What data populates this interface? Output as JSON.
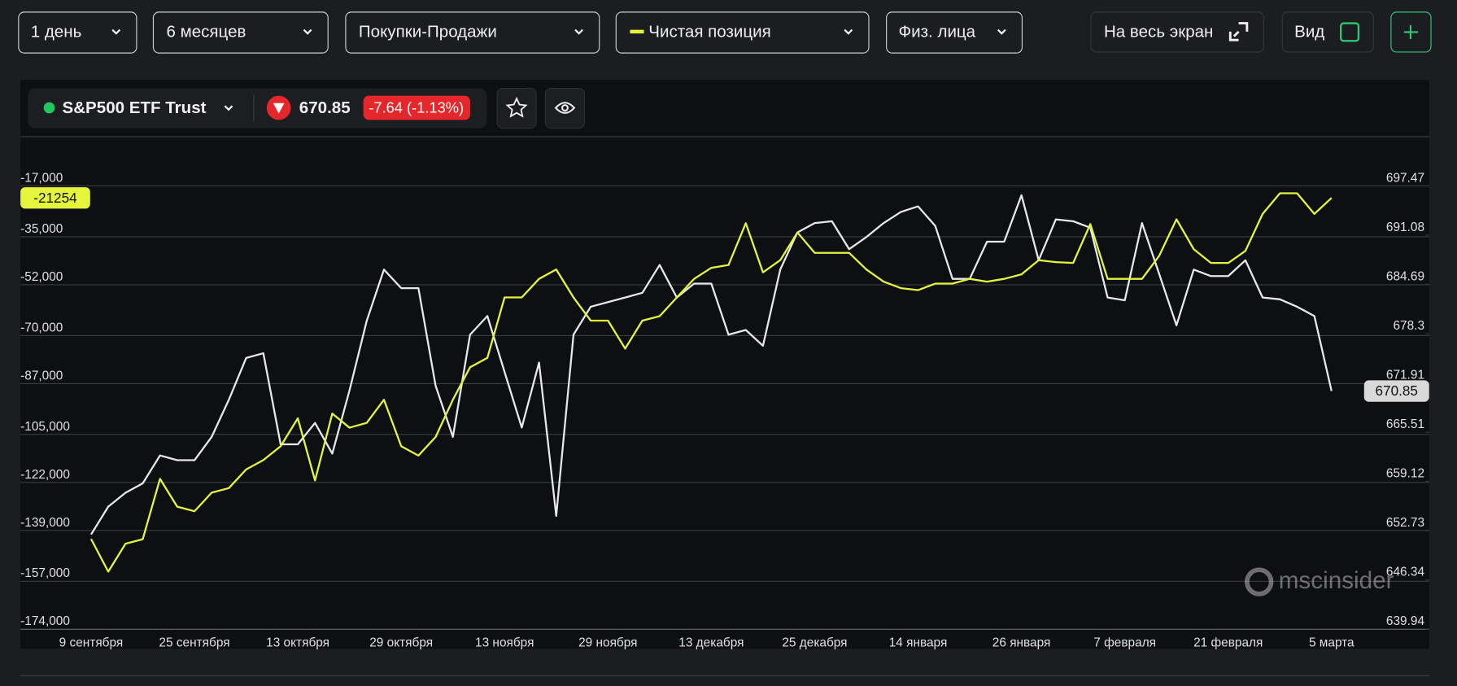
{
  "toolbar": {
    "dropdowns": [
      "1 день",
      "6 месяцев",
      "Покупки-Продажи",
      "Чистая позиция",
      "Физ. лица"
    ],
    "fullscreen": "На весь экран",
    "view": "Вид"
  },
  "instrument": {
    "name": "S&P500 ETF Trust",
    "price": 670.85,
    "change": "-7.64 (-1.13%)"
  },
  "watermark": "mscinsider",
  "chart_data": {
    "type": "line",
    "grid": true,
    "categories": [
      "9 сентября",
      null,
      null,
      null,
      null,
      null,
      "25 сентября",
      null,
      null,
      null,
      null,
      null,
      "13 октября",
      null,
      null,
      null,
      null,
      null,
      "29 октября",
      null,
      null,
      null,
      null,
      null,
      "13 ноября",
      null,
      null,
      null,
      null,
      null,
      "29 ноября",
      null,
      null,
      null,
      null,
      null,
      "13 декабря",
      null,
      null,
      null,
      null,
      null,
      "25 декабря",
      null,
      null,
      null,
      null,
      null,
      "14 января",
      null,
      null,
      null,
      null,
      null,
      "26 января",
      null,
      null,
      null,
      null,
      null,
      "7 февраля",
      null,
      null,
      null,
      null,
      null,
      "21 февраля",
      null,
      null,
      null,
      null,
      null,
      "5 марта"
    ],
    "ylim": [
      -174000,
      -17000
    ],
    "yticks": [
      {
        "value": -17000,
        "label": "-17,000"
      },
      {
        "value": -35000,
        "label": "-35,000"
      },
      {
        "value": -52000,
        "label": "-52,000"
      },
      {
        "value": -70000,
        "label": "-70,000"
      },
      {
        "value": -87000,
        "label": "-87,000"
      },
      {
        "value": -105000,
        "label": "-105,000"
      },
      {
        "value": -122000,
        "label": "-122,000"
      },
      {
        "value": -139000,
        "label": "-139,000"
      },
      {
        "value": -157000,
        "label": "-157,000"
      },
      {
        "value": -174000,
        "label": "-174,000"
      }
    ],
    "y2lim": [
      639.94,
      697.47
    ],
    "y2ticks": [
      697.47,
      691.08,
      684.69,
      678.3,
      671.91,
      665.51,
      659.12,
      652.73,
      646.34,
      639.94
    ],
    "series": [
      {
        "color": "#e4f53c",
        "axis": "y",
        "values": [
          -142000,
          -153600,
          -143700,
          -142100,
          -120700,
          -130600,
          -132200,
          -125600,
          -124000,
          -117400,
          -114100,
          -109200,
          -99300,
          -121300,
          -97600,
          -102600,
          -100900,
          -92700,
          -109200,
          -112500,
          -105900,
          -92700,
          -81200,
          -77900,
          -56500,
          -56500,
          -49900,
          -46600,
          -56500,
          -64700,
          -64700,
          -74600,
          -64700,
          -63100,
          -56500,
          -49900,
          -46000,
          -45000,
          -30200,
          -47600,
          -43300,
          -33500,
          -40700,
          -40700,
          -40700,
          -46600,
          -50900,
          -53200,
          -53900,
          -51600,
          -51600,
          -49900,
          -50900,
          -49900,
          -48300,
          -43300,
          -44000,
          -44300,
          -30500,
          -49900,
          -49900,
          -49900,
          -41700,
          -28800,
          -39400,
          -44300,
          -44300,
          -40000,
          -26900,
          -19600,
          -19600,
          -26900,
          -21254
        ]
      },
      {
        "color": "#e8e8e8",
        "axis": "y2",
        "values": [
          652.24,
          655.85,
          657.66,
          658.87,
          662.49,
          661.88,
          661.88,
          664.9,
          669.73,
          675.15,
          675.76,
          663.94,
          663.94,
          666.71,
          662.73,
          670.93,
          679.98,
          686.61,
          684.2,
          684.2,
          671.54,
          664.9,
          678.17,
          680.58,
          673.34,
          666.11,
          674.55,
          654.65,
          678.17,
          681.79,
          682.39,
          682.99,
          683.6,
          687.22,
          682.99,
          684.8,
          684.8,
          678.17,
          678.77,
          676.72,
          686.61,
          691.44,
          692.64,
          692.89,
          689.27,
          690.84,
          692.64,
          694.09,
          694.82,
          692.28,
          685.41,
          685.41,
          690.23,
          690.23,
          696.26,
          687.82,
          693.13,
          692.89,
          692.04,
          682.99,
          682.63,
          692.64,
          686.01,
          679.38,
          686.61,
          685.77,
          685.77,
          687.82,
          682.99,
          682.75,
          681.79,
          680.58,
          670.85
        ]
      }
    ]
  }
}
